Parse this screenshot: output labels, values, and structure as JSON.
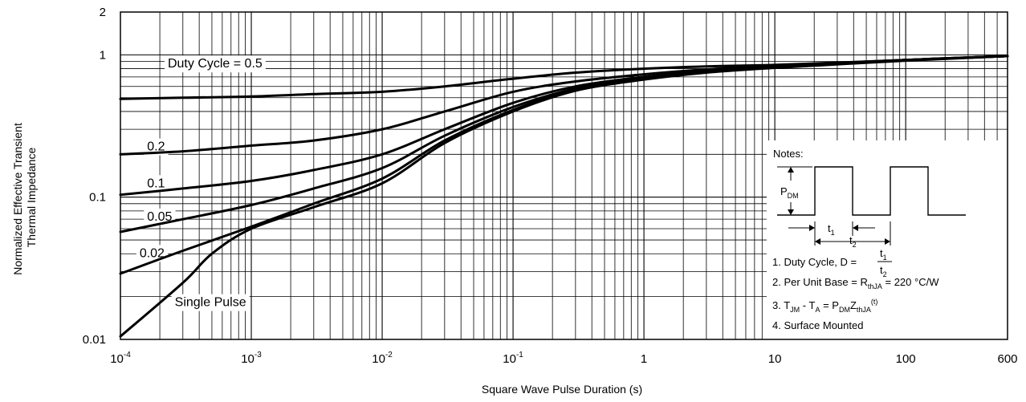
{
  "chart_data": {
    "type": "line",
    "title": "",
    "xlabel": "Square Wave Pulse Duration (s)",
    "ylabel": [
      "Normalized Effective Transient",
      "Thermal Impedance"
    ],
    "x_scale": "log",
    "y_scale": "log",
    "xlim": [
      0.0001,
      600
    ],
    "ylim": [
      0.01,
      2
    ],
    "grid": true,
    "x_ticks": [
      {
        "value": 0.0001,
        "base": "10",
        "exp": "-4"
      },
      {
        "value": 0.001,
        "base": "10",
        "exp": "-3"
      },
      {
        "value": 0.01,
        "base": "10",
        "exp": "-2"
      },
      {
        "value": 0.1,
        "base": "10",
        "exp": "-1"
      },
      {
        "value": 1,
        "base": "1",
        "exp": ""
      },
      {
        "value": 10,
        "base": "10",
        "exp": ""
      },
      {
        "value": 100,
        "base": "100",
        "exp": ""
      },
      {
        "value": 600,
        "base": "600",
        "exp": ""
      }
    ],
    "y_ticks": [
      {
        "value": 0.01,
        "label": "0.01"
      },
      {
        "value": 0.1,
        "label": "0.1"
      },
      {
        "value": 1,
        "label": "1"
      },
      {
        "value": 2,
        "label": "2"
      }
    ],
    "series": [
      {
        "name": "Duty Cycle = 0.5",
        "label_anchor": {
          "x": 0.00023,
          "y": 0.88
        },
        "x": [
          0.0001,
          0.0003,
          0.001,
          0.003,
          0.01,
          0.03,
          0.1,
          0.3,
          1,
          3,
          10,
          100,
          600
        ],
        "y": [
          0.49,
          0.5,
          0.51,
          0.53,
          0.55,
          0.6,
          0.68,
          0.75,
          0.8,
          0.83,
          0.85,
          0.92,
          0.98
        ]
      },
      {
        "name": "0.2",
        "label_anchor": {
          "x": 0.00016,
          "y": 0.23
        },
        "x": [
          0.0001,
          0.0003,
          0.001,
          0.003,
          0.01,
          0.03,
          0.1,
          0.3,
          1,
          3,
          10,
          100,
          600
        ],
        "y": [
          0.2,
          0.21,
          0.23,
          0.25,
          0.3,
          0.4,
          0.55,
          0.65,
          0.73,
          0.79,
          0.84,
          0.92,
          0.98
        ]
      },
      {
        "name": "0.1",
        "label_anchor": {
          "x": 0.00016,
          "y": 0.127
        },
        "x": [
          0.0001,
          0.0003,
          0.001,
          0.003,
          0.01,
          0.03,
          0.1,
          0.3,
          1,
          3,
          10,
          100,
          600
        ],
        "y": [
          0.104,
          0.115,
          0.13,
          0.155,
          0.2,
          0.3,
          0.46,
          0.6,
          0.7,
          0.77,
          0.83,
          0.92,
          0.98
        ]
      },
      {
        "name": "0.05",
        "label_anchor": {
          "x": 0.00016,
          "y": 0.074
        },
        "x": [
          0.0001,
          0.0003,
          0.001,
          0.003,
          0.01,
          0.03,
          0.1,
          0.3,
          1,
          3,
          10,
          100,
          600
        ],
        "y": [
          0.057,
          0.07,
          0.088,
          0.115,
          0.16,
          0.27,
          0.43,
          0.58,
          0.69,
          0.76,
          0.82,
          0.92,
          0.98
        ]
      },
      {
        "name": "0.02",
        "label_anchor": {
          "x": 0.00014,
          "y": 0.041
        },
        "x": [
          0.0001,
          0.0003,
          0.001,
          0.003,
          0.01,
          0.03,
          0.1,
          0.3,
          1,
          3,
          10,
          100,
          600
        ],
        "y": [
          0.029,
          0.042,
          0.062,
          0.09,
          0.135,
          0.25,
          0.41,
          0.57,
          0.68,
          0.76,
          0.82,
          0.92,
          0.98
        ]
      },
      {
        "name": "Single Pulse",
        "label_anchor": {
          "x": 0.00026,
          "y": 0.0185
        },
        "x": [
          0.0001,
          0.0003,
          0.0005,
          0.001,
          0.003,
          0.01,
          0.03,
          0.1,
          0.3,
          1,
          3,
          10,
          100,
          600
        ],
        "y": [
          0.0105,
          0.025,
          0.04,
          0.06,
          0.085,
          0.125,
          0.24,
          0.4,
          0.56,
          0.67,
          0.75,
          0.81,
          0.91,
          0.98
        ]
      }
    ],
    "notes": {
      "heading": "Notes:",
      "pdm_label": "P",
      "pdm_sub": "DM",
      "t1_label": "t",
      "t1_sub": "1",
      "t2_label": "t",
      "t2_sub": "2",
      "line1": "1. Duty Cycle, D =",
      "line1_num": "t",
      "line1_num_sub": "1",
      "line1_den": "t",
      "line1_den_sub": "2",
      "line2_pre": "2. Per Unit Base = R",
      "line2_sub": "thJA",
      "line2_post": " = 220 °C/W",
      "line3_a": "3. T",
      "line3_a_sub": "JM",
      "line3_b": " - T",
      "line3_b_sub": "A",
      "line3_c": " = P",
      "line3_c_sub": "DM",
      "line3_d": "Z",
      "line3_d_sub": "thJA",
      "line3_sup": "(t)",
      "line4": "4. Surface Mounted"
    }
  }
}
